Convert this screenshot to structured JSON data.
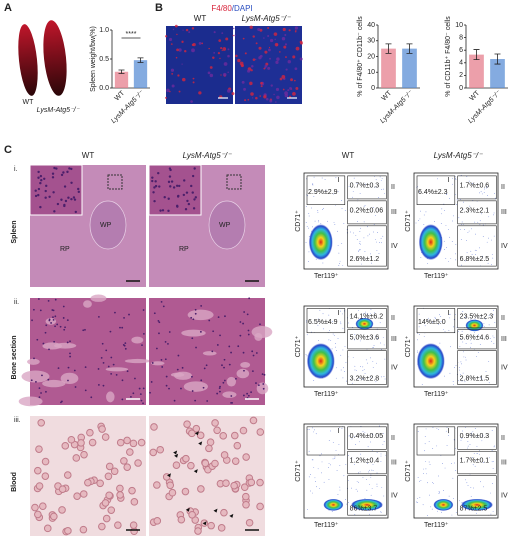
{
  "panel_labels": [
    "A",
    "B",
    "C"
  ],
  "genotypes": [
    "WT",
    "LysM-Atg5⁻/⁻"
  ],
  "stain": {
    "red": "F4/80",
    "blue": "/DAPI"
  },
  "chart_data": [
    {
      "type": "bar",
      "ylabel": "Spleen weight/bw(%)",
      "categories": [
        "WT",
        "LysM-Atg5⁻/⁻"
      ],
      "values": [
        0.28,
        0.48
      ],
      "errors": [
        0.03,
        0.04
      ],
      "colors": [
        "#e57f8e",
        "#5b8fd6"
      ],
      "ylim": [
        0,
        1.0
      ],
      "yticks": [
        {
          "value": 0,
          "label": "0.0"
        },
        {
          "value": 0.5,
          "label": "0.5"
        },
        {
          "value": 1.0,
          "label": "1.0"
        }
      ],
      "annotation": "****"
    },
    {
      "type": "bar",
      "ylabel": "% of F4/80⁺ CD11b⁻ cells",
      "categories": [
        "WT",
        "LysM-Atg5⁻/⁻"
      ],
      "values": [
        25,
        25
      ],
      "errors": [
        3,
        3
      ],
      "colors": [
        "#e57f8e",
        "#5b8fd6"
      ],
      "ylim": [
        0,
        40
      ],
      "yticks": [
        0,
        10,
        20,
        30,
        40
      ]
    },
    {
      "type": "bar",
      "ylabel": "% of CD11b⁺ F4/80⁻ cells",
      "categories": [
        "WT",
        "LysM-Atg5⁻/⁻"
      ],
      "values": [
        5.3,
        4.6
      ],
      "errors": [
        0.8,
        0.8
      ],
      "colors": [
        "#e57f8e",
        "#5b8fd6"
      ],
      "ylim": [
        0,
        10
      ],
      "yticks": [
        0,
        2,
        4,
        6,
        8,
        10
      ]
    }
  ],
  "flow_axes": {
    "y": "CD71⁺",
    "x": "Ter119⁺"
  },
  "quadrants": [
    "I",
    "II",
    "III",
    "IV"
  ],
  "rows": [
    {
      "index": "i.",
      "tissue": "Spleen",
      "annotations": [
        "RP",
        "WP",
        "RP",
        "WP"
      ],
      "flow": [
        {
          "I": "2.9%±2.9",
          "II": "0.7%±0.3",
          "III": "0.2%±0.06",
          "IV": "2.6%±1.2"
        },
        {
          "I": "6.4%±2.3",
          "II": "1.7%±0.6",
          "III": "2.3%±2.1",
          "IV": "6.8%±2.5"
        }
      ]
    },
    {
      "index": "ii.",
      "tissue": "Bone section",
      "flow": [
        {
          "I": "6.5%±4.9",
          "II": "14.1%±6.2",
          "III": "5.0%±3.6",
          "IV": "3.2%±2.8"
        },
        {
          "I": "14%±5.0",
          "II": "23.5%±2.3",
          "III": "5.6%±4.6",
          "IV": "2.8%±1.5"
        }
      ]
    },
    {
      "index": "iii.",
      "tissue": "Blood",
      "flow": [
        {
          "II": "0.4%±0.05",
          "III": "1.2%±0.4",
          "IV": "86%±3.7"
        },
        {
          "II": "0.9%±0.3",
          "III": "1.7%±0.1",
          "IV": "87%±2.5"
        }
      ]
    }
  ]
}
